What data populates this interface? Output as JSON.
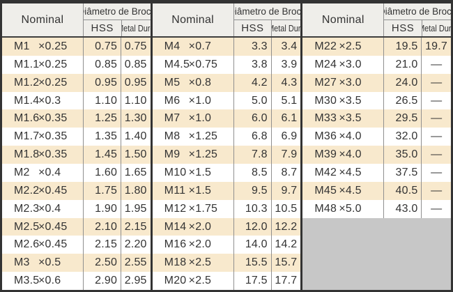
{
  "table": {
    "header": {
      "nominal": "Nominal",
      "diameter": "Diâmetro de Broca",
      "hss": "HSS",
      "metal_duro": "Metal Duro"
    },
    "no_value_mark": "—",
    "groups": [
      {
        "rows": [
          {
            "size": "M1",
            "pitch": "×0.25",
            "hss": "0.75",
            "metal_duro": "0.75"
          },
          {
            "size": "M1.1",
            "pitch": "×0.25",
            "hss": "0.85",
            "metal_duro": "0.85"
          },
          {
            "size": "M1.2",
            "pitch": "×0.25",
            "hss": "0.95",
            "metal_duro": "0.95"
          },
          {
            "size": "M1.4",
            "pitch": "×0.3",
            "hss": "1.10",
            "metal_duro": "1.10"
          },
          {
            "size": "M1.6",
            "pitch": "×0.35",
            "hss": "1.25",
            "metal_duro": "1.30"
          },
          {
            "size": "M1.7",
            "pitch": "×0.35",
            "hss": "1.35",
            "metal_duro": "1.40"
          },
          {
            "size": "M1.8",
            "pitch": "×0.35",
            "hss": "1.45",
            "metal_duro": "1.50"
          },
          {
            "size": "M2",
            "pitch": "×0.4",
            "hss": "1.60",
            "metal_duro": "1.65"
          },
          {
            "size": "M2.2",
            "pitch": "×0.45",
            "hss": "1.75",
            "metal_duro": "1.80"
          },
          {
            "size": "M2.3",
            "pitch": "×0.4",
            "hss": "1.90",
            "metal_duro": "1.95"
          },
          {
            "size": "M2.5",
            "pitch": "×0.45",
            "hss": "2.10",
            "metal_duro": "2.15"
          },
          {
            "size": "M2.6",
            "pitch": "×0.45",
            "hss": "2.15",
            "metal_duro": "2.20"
          },
          {
            "size": "M3",
            "pitch": "×0.5",
            "hss": "2.50",
            "metal_duro": "2.55"
          },
          {
            "size": "M3.5",
            "pitch": "×0.6",
            "hss": "2.90",
            "metal_duro": "2.95"
          }
        ]
      },
      {
        "rows": [
          {
            "size": "M4",
            "pitch": "×0.7",
            "hss": "3.3",
            "metal_duro": "3.4"
          },
          {
            "size": "M4.5",
            "pitch": "×0.75",
            "hss": "3.8",
            "metal_duro": "3.9"
          },
          {
            "size": "M5",
            "pitch": "×0.8",
            "hss": "4.2",
            "metal_duro": "4.3"
          },
          {
            "size": "M6",
            "pitch": "×1.0",
            "hss": "5.0",
            "metal_duro": "5.1"
          },
          {
            "size": "M7",
            "pitch": "×1.0",
            "hss": "6.0",
            "metal_duro": "6.1"
          },
          {
            "size": "M8",
            "pitch": "×1.25",
            "hss": "6.8",
            "metal_duro": "6.9"
          },
          {
            "size": "M9",
            "pitch": "×1.25",
            "hss": "7.8",
            "metal_duro": "7.9"
          },
          {
            "size": "M10",
            "pitch": "×1.5",
            "hss": "8.5",
            "metal_duro": "8.7"
          },
          {
            "size": "M11",
            "pitch": "×1.5",
            "hss": "9.5",
            "metal_duro": "9.7"
          },
          {
            "size": "M12",
            "pitch": "×1.75",
            "hss": "10.3",
            "metal_duro": "10.5"
          },
          {
            "size": "M14",
            "pitch": "×2.0",
            "hss": "12.0",
            "metal_duro": "12.2"
          },
          {
            "size": "M16",
            "pitch": "×2.0",
            "hss": "14.0",
            "metal_duro": "14.2"
          },
          {
            "size": "M18",
            "pitch": "×2.5",
            "hss": "15.5",
            "metal_duro": "15.7"
          },
          {
            "size": "M20",
            "pitch": "×2.5",
            "hss": "17.5",
            "metal_duro": "17.7"
          }
        ]
      },
      {
        "rows": [
          {
            "size": "M22",
            "pitch": "×2.5",
            "hss": "19.5",
            "metal_duro": "19.7"
          },
          {
            "size": "M24",
            "pitch": "×3.0",
            "hss": "21.0",
            "metal_duro": "—"
          },
          {
            "size": "M27",
            "pitch": "×3.0",
            "hss": "24.0",
            "metal_duro": "—"
          },
          {
            "size": "M30",
            "pitch": "×3.5",
            "hss": "26.5",
            "metal_duro": "—"
          },
          {
            "size": "M33",
            "pitch": "×3.5",
            "hss": "29.5",
            "metal_duro": "—"
          },
          {
            "size": "M36",
            "pitch": "×4.0",
            "hss": "32.0",
            "metal_duro": "—"
          },
          {
            "size": "M39",
            "pitch": "×4.0",
            "hss": "35.0",
            "metal_duro": "—"
          },
          {
            "size": "M42",
            "pitch": "×4.5",
            "hss": "37.5",
            "metal_duro": "—"
          },
          {
            "size": "M45",
            "pitch": "×4.5",
            "hss": "40.5",
            "metal_duro": "—"
          },
          {
            "size": "M48",
            "pitch": "×5.0",
            "hss": "43.0",
            "metal_duro": "—"
          }
        ]
      }
    ]
  },
  "colors": {
    "row_alt": "#F8E9CD",
    "header_bg": "#EFEEEA",
    "filler": "#C7C7C7",
    "border_dark": "#333333",
    "line_gray": "#8F8F8F",
    "text": "#333333"
  }
}
